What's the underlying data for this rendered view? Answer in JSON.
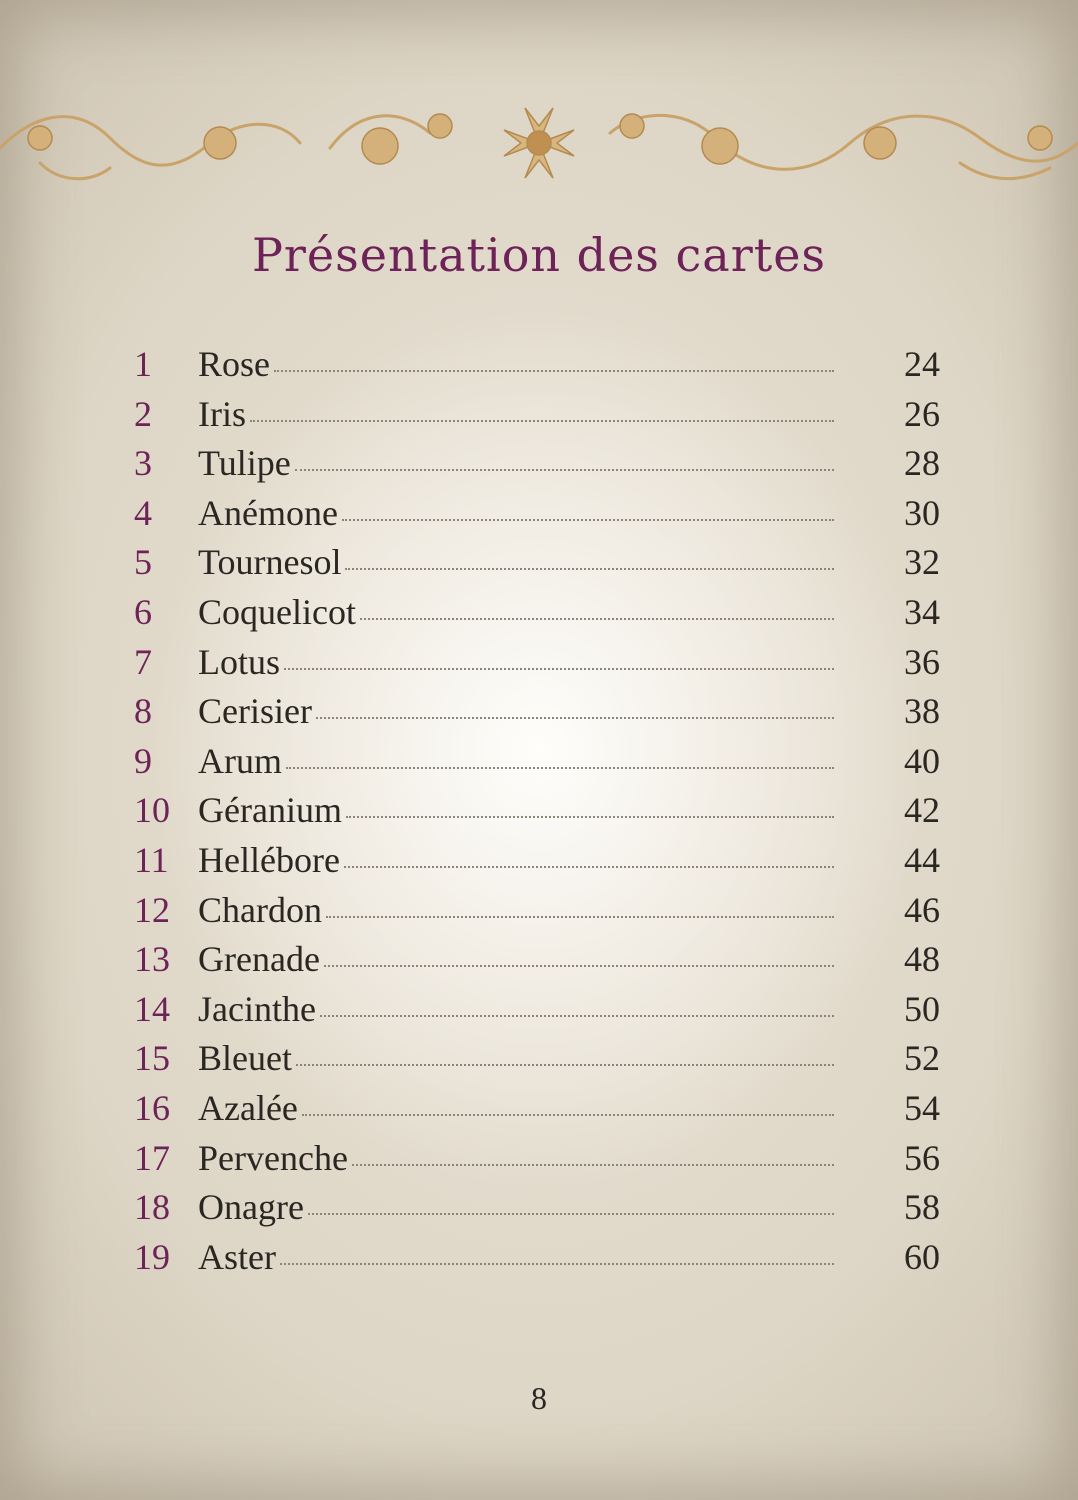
{
  "page": {
    "title": "Présentation des cartes",
    "folio": "8"
  },
  "colors": {
    "title": "#6e2358",
    "numbers": "#6e2358",
    "text": "#2a2622",
    "ornament": "#c9a36a"
  },
  "ornament": {
    "icon": "floral-scroll-ornament"
  },
  "toc": [
    {
      "num": "1",
      "label": "Rose",
      "page": "24"
    },
    {
      "num": "2",
      "label": "Iris",
      "page": "26"
    },
    {
      "num": "3",
      "label": "Tulipe",
      "page": "28"
    },
    {
      "num": "4",
      "label": "Anémone",
      "page": "30"
    },
    {
      "num": "5",
      "label": "Tournesol",
      "page": "32"
    },
    {
      "num": "6",
      "label": "Coquelicot",
      "page": "34"
    },
    {
      "num": "7",
      "label": "Lotus",
      "page": "36"
    },
    {
      "num": "8",
      "label": "Cerisier",
      "page": "38"
    },
    {
      "num": "9",
      "label": "Arum",
      "page": "40"
    },
    {
      "num": "10",
      "label": "Géranium",
      "page": "42"
    },
    {
      "num": "11",
      "label": "Hellébore",
      "page": "44"
    },
    {
      "num": "12",
      "label": "Chardon",
      "page": "46"
    },
    {
      "num": "13",
      "label": "Grenade",
      "page": "48"
    },
    {
      "num": "14",
      "label": "Jacinthe",
      "page": "50"
    },
    {
      "num": "15",
      "label": "Bleuet",
      "page": "52"
    },
    {
      "num": "16",
      "label": "Azalée",
      "page": "54"
    },
    {
      "num": "17",
      "label": "Pervenche",
      "page": "56"
    },
    {
      "num": "18",
      "label": "Onagre",
      "page": "58"
    },
    {
      "num": "19",
      "label": "Aster",
      "page": "60"
    }
  ]
}
